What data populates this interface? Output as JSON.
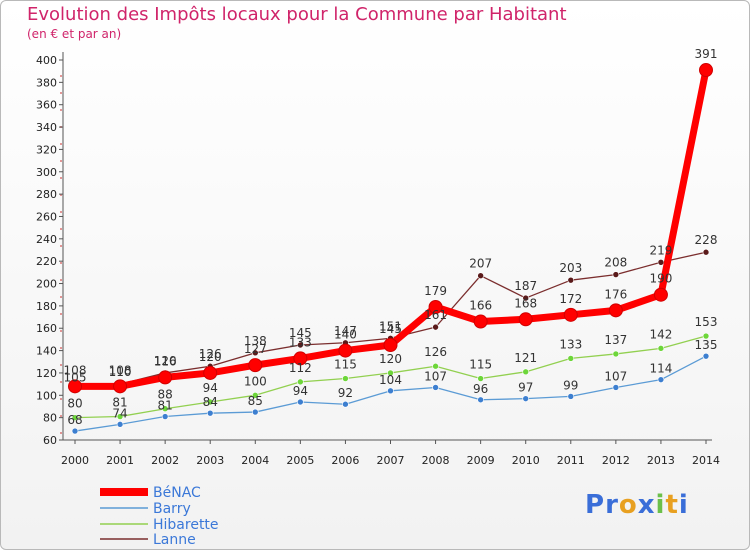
{
  "chart_data": {
    "type": "line",
    "title": "Evolution des Impôts locaux pour la Commune par Habitant",
    "subtitle": "(en € et par an)",
    "x": [
      "2000",
      "2001",
      "2002",
      "2003",
      "2004",
      "2005",
      "2006",
      "2007",
      "2008",
      "2009",
      "2010",
      "2011",
      "2012",
      "2013",
      "2014"
    ],
    "ylim": [
      60,
      400
    ],
    "yticks": [
      60,
      80,
      100,
      120,
      140,
      160,
      180,
      200,
      220,
      240,
      260,
      280,
      300,
      320,
      340,
      360,
      380,
      400
    ],
    "series": [
      {
        "name": "BéNAC",
        "color": "#ff0000",
        "values": [
          108,
          108,
          116,
          120,
          127,
          133,
          140,
          145,
          179,
          166,
          168,
          172,
          176,
          190,
          391
        ]
      },
      {
        "name": "Barry",
        "color": "#5b9bd5",
        "values": [
          68,
          74,
          81,
          84,
          85,
          94,
          92,
          104,
          107,
          96,
          97,
          99,
          107,
          114,
          135
        ]
      },
      {
        "name": "Hibarette",
        "color": "#92d050",
        "values": [
          80,
          81,
          88,
          94,
          100,
          112,
          115,
          120,
          126,
          115,
          121,
          133,
          137,
          142,
          153
        ]
      },
      {
        "name": "Lanne",
        "color": "#7b2e2e",
        "values": [
          105,
          110,
          120,
          126,
          138,
          145,
          147,
          151,
          161,
          207,
          187,
          203,
          208,
          219,
          228
        ]
      }
    ],
    "data_labels": {
      "BéNAC": [
        "108",
        "108",
        "116",
        "120",
        "127",
        "133",
        "140",
        "145",
        "179",
        "166",
        "168",
        "172",
        "176",
        "190",
        "391"
      ],
      "Barry": [
        "68",
        "74",
        "81",
        "84",
        "85",
        "94",
        "92",
        "104",
        "107",
        "96",
        "97",
        "99",
        "107",
        "114",
        "135"
      ],
      "Hibarette": [
        "80",
        "81",
        "88",
        "94",
        "100",
        "112",
        "115",
        "120",
        "126",
        "115",
        "121",
        "133",
        "137",
        "142",
        "153"
      ],
      "Lanne": [
        "105",
        "110",
        "120",
        "126",
        "138",
        "145",
        "147",
        "151",
        "161",
        "207",
        "187",
        "203",
        "208",
        "219",
        "228"
      ]
    },
    "legend_position": "bottom-left",
    "grid": false
  },
  "logo": {
    "text": "Proxiti",
    "letters": [
      "P",
      "r",
      "o",
      "x",
      "i",
      "t",
      "i"
    ],
    "colors": [
      "#3a6ed8",
      "#3a6ed8",
      "#e8a020",
      "#3a6ed8",
      "#6cc04a",
      "#e8a020",
      "#3a6ed8"
    ]
  }
}
